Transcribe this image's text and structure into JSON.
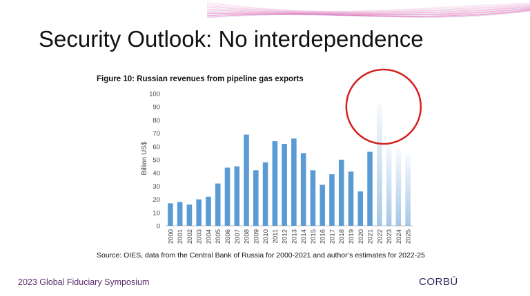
{
  "slide": {
    "title": "Security Outlook: No interdependence",
    "figure_title": "Figure 10: Russian revenues from pipeline gas exports",
    "source": "Source: OIES, data from the Central Bank of Russia for 2000-2021 and author’s estimates for 2022-25",
    "footer_left": "2023 Global Fiduciary Symposium",
    "footer_logo": "CORBŪ",
    "accent_color": "#e0409a",
    "highlight_circle_color": "#d42020"
  },
  "chart_data": {
    "type": "bar",
    "title": "Figure 10: Russian revenues from pipeline gas exports",
    "xlabel": "",
    "ylabel": "Billion US$",
    "ylim": [
      0,
      100
    ],
    "yticks": [
      0,
      10,
      20,
      30,
      40,
      50,
      60,
      70,
      80,
      90,
      100
    ],
    "grid": false,
    "categories": [
      "2000",
      "2001",
      "2002",
      "2003",
      "2004",
      "2005",
      "2006",
      "2007",
      "2008",
      "2009",
      "2010",
      "2011",
      "2012",
      "2013",
      "2014",
      "2015",
      "2016",
      "2017",
      "2018",
      "2019",
      "2020",
      "2021",
      "2022",
      "2023",
      "2024",
      "2025"
    ],
    "values": [
      17,
      18,
      16,
      20,
      22,
      32,
      44,
      45,
      69,
      42,
      48,
      64,
      62,
      66,
      55,
      42,
      31,
      39,
      50,
      41,
      26,
      56,
      92,
      63,
      58,
      54
    ],
    "estimated_from": "2022",
    "bar_color": "#5b9bd5",
    "highlight": "2022"
  }
}
